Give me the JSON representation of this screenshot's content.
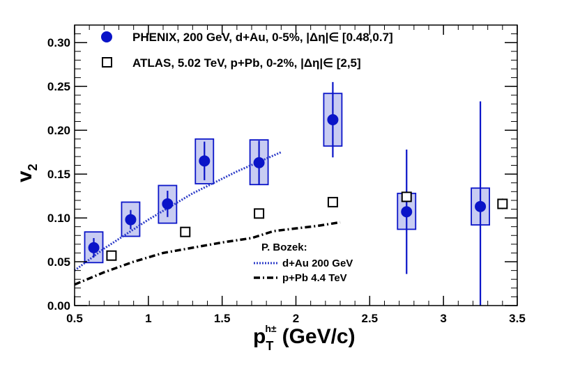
{
  "chart_data": {
    "type": "scatter",
    "xlabel": "p",
    "xlabel_sub": "T",
    "xlabel_sup": "h±",
    "xlabel_units": "(GeV/c)",
    "ylabel": "v",
    "ylabel_sub": "2",
    "xlim": [
      0.5,
      3.5
    ],
    "ylim": [
      0.0,
      0.32
    ],
    "x_ticks": [
      "0.5",
      "1",
      "1.5",
      "2",
      "2.5",
      "3",
      "3.5"
    ],
    "x_tick_values": [
      0.5,
      1.0,
      1.5,
      2.0,
      2.5,
      3.0,
      3.5
    ],
    "y_ticks": [
      "0.00",
      "0.05",
      "0.10",
      "0.15",
      "0.20",
      "0.25",
      "0.30"
    ],
    "y_tick_values": [
      0.0,
      0.05,
      0.1,
      0.15,
      0.2,
      0.25,
      0.3
    ],
    "series": [
      {
        "name": "PHENIX, 200 GeV, d+Au, 0-5%, |Δη|∈ [0.48,0.7]",
        "marker": "filled-circle",
        "color": "#0a14c8",
        "x": [
          0.63,
          0.88,
          1.13,
          1.38,
          1.75,
          2.25,
          2.75,
          3.25
        ],
        "y": [
          0.066,
          0.098,
          0.116,
          0.165,
          0.163,
          0.212,
          0.107,
          0.113
        ],
        "stat_err": [
          0.011,
          0.011,
          0.015,
          0.022,
          0.025,
          0.043,
          0.071,
          0.12
        ],
        "sys_low": [
          0.049,
          0.079,
          0.094,
          0.139,
          0.138,
          0.182,
          0.087,
          0.092
        ],
        "sys_high": [
          0.084,
          0.118,
          0.137,
          0.19,
          0.189,
          0.242,
          0.128,
          0.134
        ]
      },
      {
        "name": "ATLAS, 5.02 TeV, p+Pb, 0-2%, |Δη|∈ [2,5]",
        "marker": "open-square",
        "color": "#000000",
        "x": [
          0.75,
          1.25,
          1.75,
          2.25,
          2.75,
          3.4
        ],
        "y": [
          0.057,
          0.084,
          0.105,
          0.118,
          0.124,
          0.116
        ],
        "stat_err": [
          0.0,
          0.0,
          0.0,
          0.0,
          0.0,
          0.006
        ]
      }
    ],
    "theory": {
      "title": "P. Bozek:",
      "curves": [
        {
          "name": "d+Au 200 GeV",
          "style": "dotted",
          "color": "#2d3cc8",
          "x": [
            0.5,
            0.7,
            1.0,
            1.3,
            1.6,
            1.9
          ],
          "y": [
            0.04,
            0.065,
            0.098,
            0.128,
            0.153,
            0.175
          ]
        },
        {
          "name": "p+Pb 4.4 TeV",
          "style": "dash-dot",
          "color": "#000000",
          "x": [
            0.5,
            0.7,
            0.9,
            1.1,
            1.3,
            1.5,
            1.7,
            1.85,
            2.0,
            2.15,
            2.3
          ],
          "y": [
            0.024,
            0.038,
            0.05,
            0.06,
            0.066,
            0.072,
            0.077,
            0.085,
            0.088,
            0.091,
            0.095
          ]
        }
      ]
    }
  }
}
